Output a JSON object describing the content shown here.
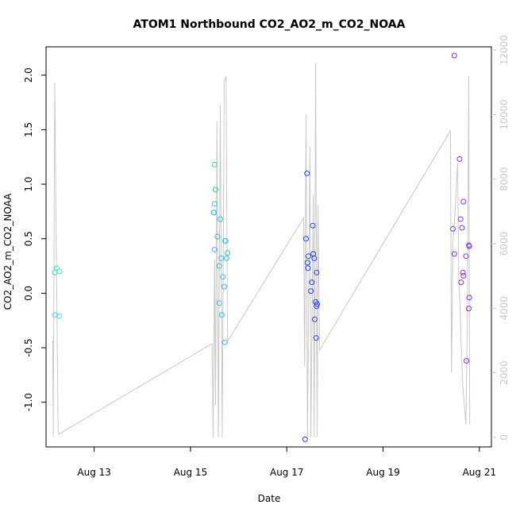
{
  "chart_data": {
    "type": "scatter",
    "title": "ATOM1 Northbound CO2_AO2_m_CO2_NOAA",
    "xlabel": "Date",
    "ylabel": "CO2_AO2_m_CO2_NOAA",
    "x_ticks": [
      {
        "day": 13,
        "label": "Aug 13"
      },
      {
        "day": 15,
        "label": "Aug 15"
      },
      {
        "day": 17,
        "label": "Aug 17"
      },
      {
        "day": 19,
        "label": "Aug 19"
      },
      {
        "day": 21,
        "label": "Aug 21"
      }
    ],
    "xlim": [
      12.0,
      21.25
    ],
    "y_ticks": [
      -1.0,
      -0.5,
      0.0,
      0.5,
      1.0,
      1.5,
      2.0
    ],
    "y_tick_labels": [
      "-1.0",
      "-0.5",
      "0.0",
      "0.5",
      "1.0",
      "1.5",
      "2.0"
    ],
    "ylim": [
      -1.41,
      2.26
    ],
    "y2_ticks": [
      0,
      2000,
      4000,
      6000,
      8000,
      10000,
      12000
    ],
    "y2_tick_labels": [
      "0",
      "2000",
      "4000",
      "6000",
      "8000",
      "10000",
      "12000"
    ],
    "y2lim": [
      -300,
      12100
    ],
    "line_color": "#c8c8c8",
    "series": [
      {
        "color": "#40e0c0",
        "points": [
          [
            12.18,
            0.19
          ],
          [
            12.22,
            0.23
          ],
          [
            12.28,
            0.2
          ],
          [
            12.19,
            -0.2
          ],
          [
            12.27,
            -0.21
          ]
        ]
      },
      {
        "color": "#30c0e8",
        "points": [
          [
            15.5,
            1.18
          ],
          [
            15.52,
            0.95
          ],
          [
            15.5,
            0.82
          ],
          [
            15.48,
            0.74
          ],
          [
            15.49,
            0.74
          ],
          [
            15.62,
            0.68
          ],
          [
            15.56,
            0.52
          ],
          [
            15.72,
            0.48
          ],
          [
            15.73,
            0.48
          ],
          [
            15.5,
            0.4
          ],
          [
            15.77,
            0.37
          ],
          [
            15.64,
            0.32
          ],
          [
            15.75,
            0.32
          ],
          [
            15.6,
            0.25
          ],
          [
            15.67,
            0.15
          ],
          [
            15.7,
            0.06
          ],
          [
            15.6,
            -0.09
          ],
          [
            15.65,
            -0.2
          ],
          [
            15.71,
            -0.45
          ]
        ]
      },
      {
        "color": "#2040f0",
        "points": [
          [
            17.42,
            1.1
          ],
          [
            17.4,
            0.5
          ],
          [
            17.54,
            0.62
          ],
          [
            17.45,
            0.34
          ],
          [
            17.43,
            0.28
          ],
          [
            17.55,
            0.36
          ],
          [
            17.57,
            0.32
          ],
          [
            17.44,
            0.23
          ],
          [
            17.62,
            0.19
          ],
          [
            17.52,
            0.1
          ],
          [
            17.5,
            0.02
          ],
          [
            17.6,
            -0.08
          ],
          [
            17.63,
            -0.1
          ],
          [
            17.62,
            -0.12
          ],
          [
            17.58,
            -0.24
          ],
          [
            17.61,
            -0.41
          ],
          [
            17.38,
            -1.34
          ]
        ]
      },
      {
        "color": "#8a30e8",
        "points": [
          [
            20.48,
            2.18
          ],
          [
            20.59,
            1.23
          ],
          [
            20.67,
            0.84
          ],
          [
            20.61,
            0.68
          ],
          [
            20.45,
            0.59
          ],
          [
            20.64,
            0.6
          ],
          [
            20.78,
            0.44
          ],
          [
            20.79,
            0.43
          ],
          [
            20.48,
            0.36
          ],
          [
            20.72,
            0.34
          ],
          [
            20.66,
            0.19
          ],
          [
            20.67,
            0.16
          ],
          [
            20.62,
            0.1
          ],
          [
            20.79,
            -0.04
          ],
          [
            20.78,
            -0.14
          ],
          [
            20.73,
            -0.62
          ]
        ]
      }
    ],
    "line_y2": [
      [
        12.14,
        3000
      ],
      [
        12.15,
        0
      ],
      [
        12.18,
        11000
      ],
      [
        12.25,
        200
      ],
      [
        12.27,
        100
      ],
      [
        15.45,
        2900
      ],
      [
        15.47,
        0
      ],
      [
        15.5,
        5500
      ],
      [
        15.52,
        1000
      ],
      [
        15.55,
        9800
      ],
      [
        15.58,
        0
      ],
      [
        15.62,
        10300
      ],
      [
        15.66,
        0
      ],
      [
        15.7,
        11000
      ],
      [
        15.74,
        11200
      ],
      [
        15.77,
        2900
      ],
      [
        15.78,
        3000
      ],
      [
        17.35,
        6800
      ],
      [
        17.37,
        2200
      ],
      [
        17.4,
        10000
      ],
      [
        17.43,
        0
      ],
      [
        17.48,
        9000
      ],
      [
        17.5,
        0
      ],
      [
        17.55,
        7500
      ],
      [
        17.57,
        0
      ],
      [
        17.6,
        11600
      ],
      [
        17.63,
        0
      ],
      [
        17.65,
        7200
      ],
      [
        17.68,
        2700
      ],
      [
        20.4,
        9500
      ],
      [
        20.42,
        2000
      ],
      [
        20.45,
        6000
      ],
      [
        20.5,
        7100
      ],
      [
        20.55,
        8500
      ],
      [
        20.57,
        5000
      ],
      [
        20.6,
        4000
      ],
      [
        20.63,
        2500
      ],
      [
        20.66,
        1500
      ],
      [
        20.7,
        800
      ],
      [
        20.72,
        400
      ],
      [
        20.75,
        3500
      ],
      [
        20.78,
        11200
      ],
      [
        20.8,
        400
      ]
    ]
  }
}
